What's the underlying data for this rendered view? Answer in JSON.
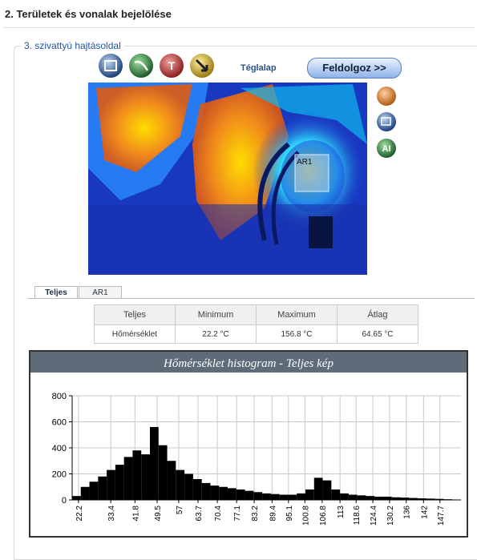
{
  "header": {
    "title": "2. Területek és vonalak bejelölése"
  },
  "panel": {
    "legend": "3. szivattyú hajtásoldal",
    "tool_icon_text": "T",
    "tool_label": "Téglalap",
    "process_button": "Feldolgoz >>",
    "region_label": "AR1",
    "side_icon_text": "AI"
  },
  "tabs": [
    "Teljes",
    "AR1"
  ],
  "table": {
    "header": [
      "Teljes",
      "Minimum",
      "Maximum",
      "Átlag"
    ],
    "rows": [
      [
        "Hőmérséklet",
        "22.2 °C",
        "156.8 °C",
        "64.65 °C"
      ]
    ]
  },
  "chart_data": {
    "type": "histogram",
    "title": "Hőmérséklet histogram - Teljes kép",
    "bins": [
      20,
      23,
      26,
      29,
      32,
      35,
      38,
      41,
      44,
      47,
      50,
      53,
      56,
      59,
      62,
      65,
      68,
      71,
      74,
      77,
      80,
      83,
      86,
      89,
      92,
      95,
      98,
      101,
      104,
      107,
      110,
      113,
      116,
      119,
      122,
      125,
      128,
      131,
      134,
      137,
      140,
      143,
      146,
      149,
      152,
      155
    ],
    "counts": [
      30,
      100,
      140,
      180,
      230,
      270,
      330,
      380,
      350,
      560,
      420,
      300,
      230,
      200,
      160,
      130,
      110,
      100,
      90,
      80,
      70,
      60,
      50,
      45,
      40,
      40,
      50,
      80,
      170,
      150,
      80,
      50,
      40,
      35,
      30,
      25,
      25,
      20,
      18,
      15,
      12,
      10,
      8,
      5,
      3
    ],
    "color": "#000000",
    "xlim": [
      20,
      155
    ],
    "xticks": [
      22.2,
      33.4,
      41.8,
      49.5,
      57,
      63.7,
      70.4,
      77.1,
      83.2,
      89.4,
      95.1,
      100.8,
      106.8,
      113,
      118.6,
      124.4,
      130.2,
      136,
      142,
      147.7
    ],
    "ylim": [
      0,
      800
    ],
    "yticks": [
      0,
      200,
      400,
      600,
      800
    ],
    "grid": true
  }
}
